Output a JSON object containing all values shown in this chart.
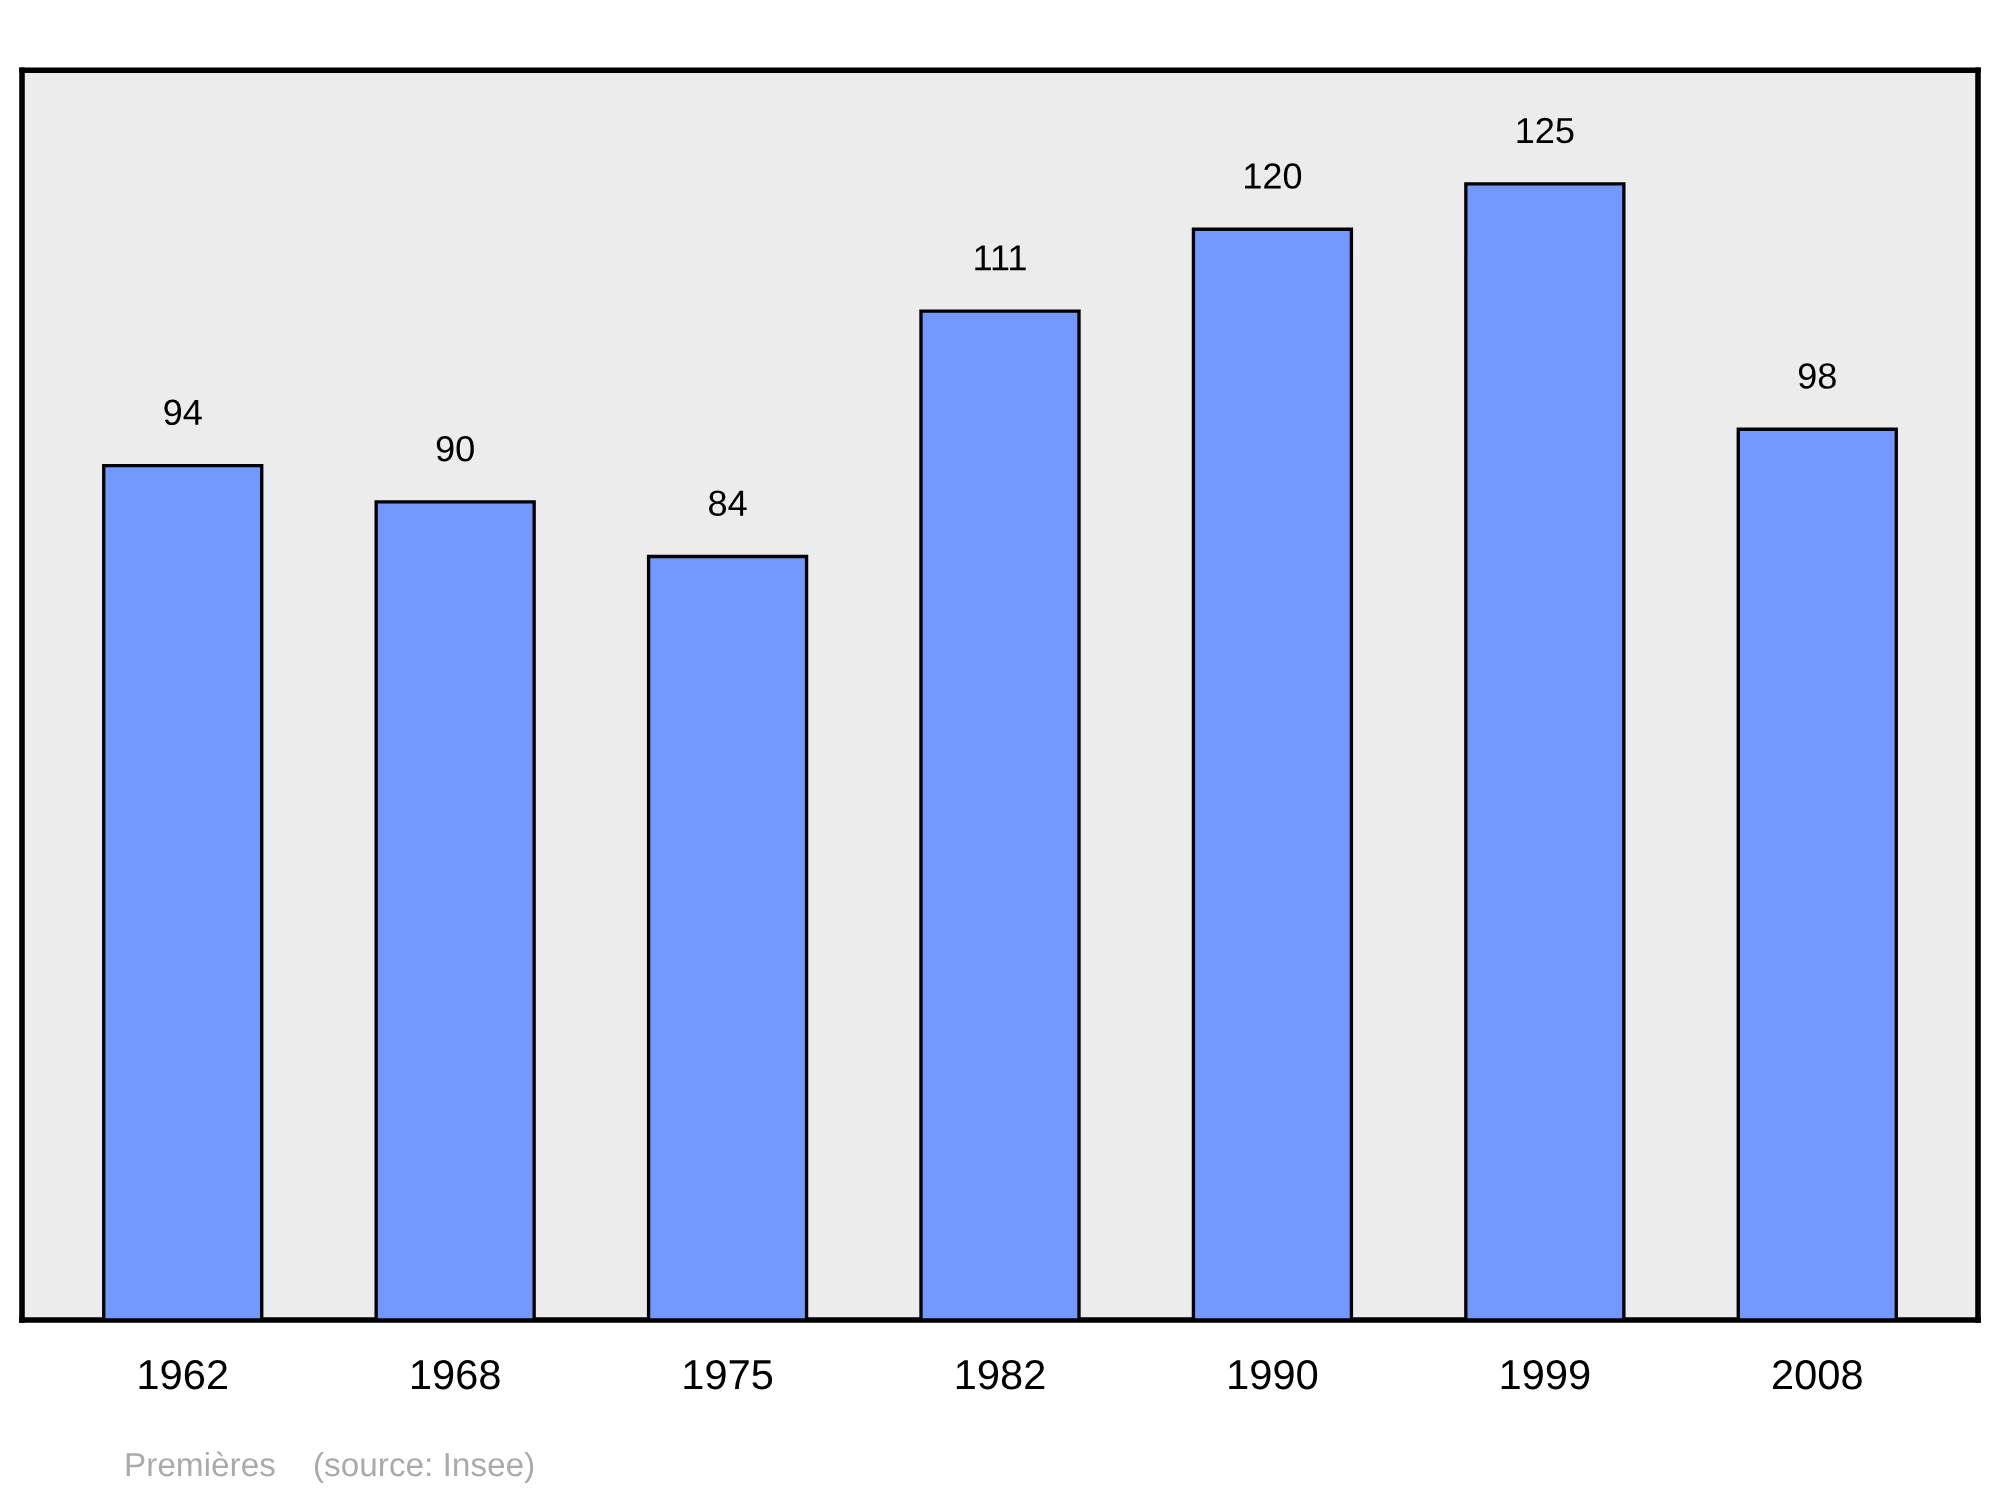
{
  "chart_data": {
    "type": "bar",
    "categories": [
      "1962",
      "1968",
      "1975",
      "1982",
      "1990",
      "1999",
      "2008"
    ],
    "values": [
      94,
      90,
      84,
      111,
      120,
      125,
      98
    ],
    "color": "#7399ff",
    "data_labels": true,
    "grid": false,
    "legend": false,
    "tick_labels": "x",
    "annotations": [
      "Premières    (source: Insee)"
    ]
  }
}
